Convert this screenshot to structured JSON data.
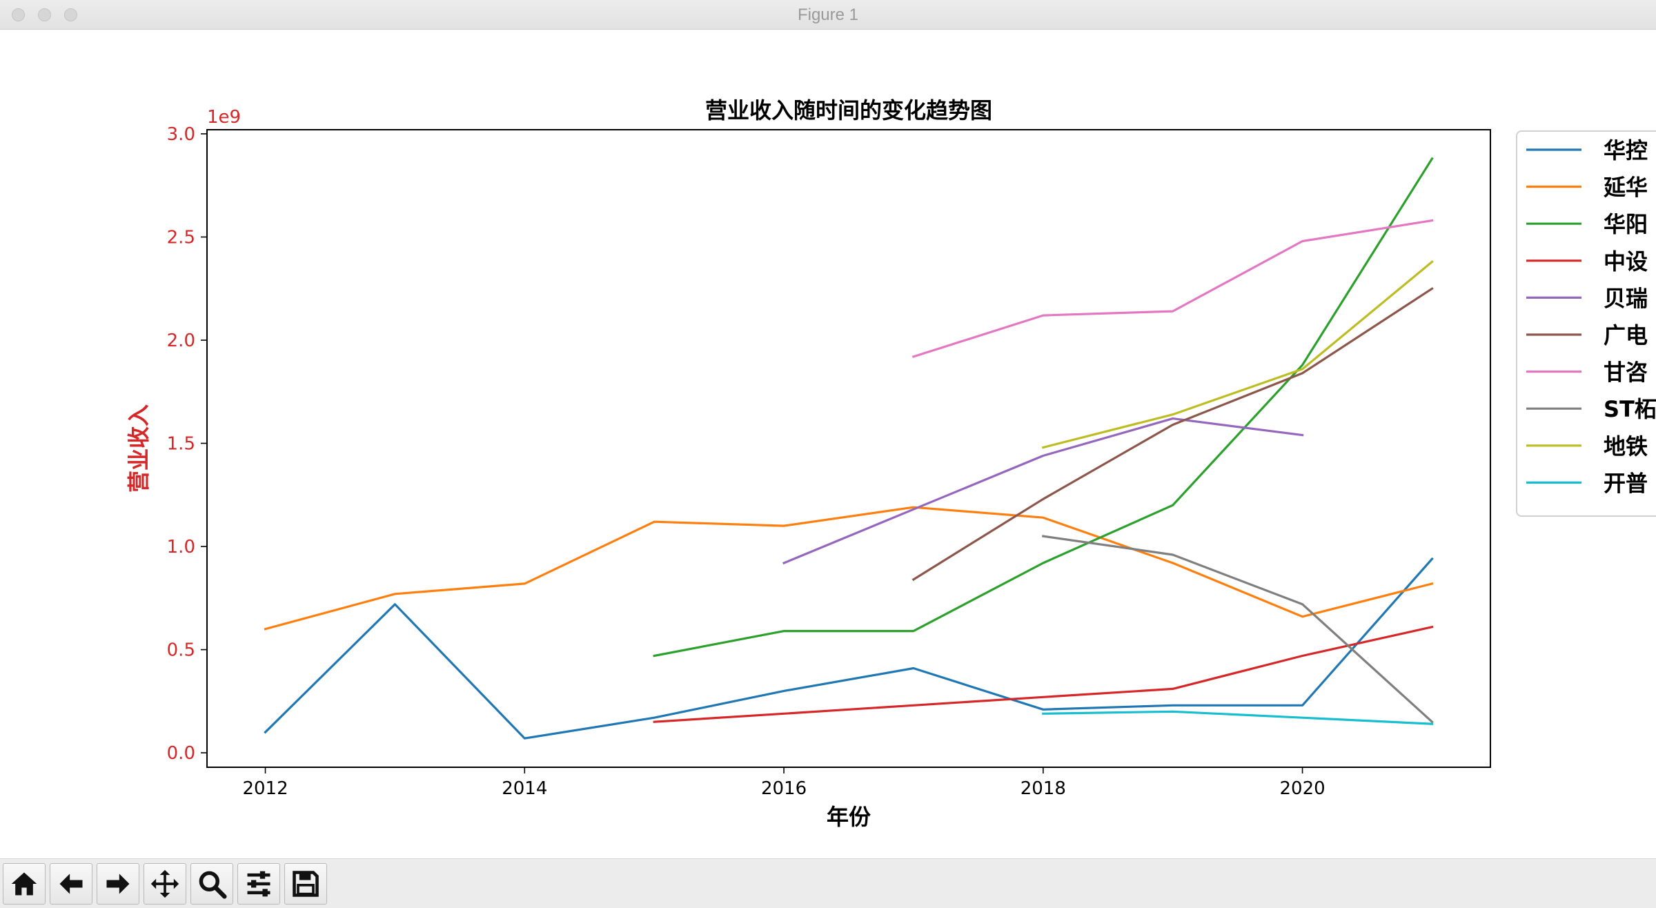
{
  "window": {
    "title": "Figure 1"
  },
  "toolbar": {
    "buttons": [
      {
        "name": "home-button",
        "icon": "home-icon"
      },
      {
        "name": "back-button",
        "icon": "arrow-left-icon"
      },
      {
        "name": "forward-button",
        "icon": "arrow-right-icon"
      },
      {
        "name": "pan-button",
        "icon": "move-icon"
      },
      {
        "name": "zoom-button",
        "icon": "magnifier-icon"
      },
      {
        "name": "configure-subplots-button",
        "icon": "sliders-icon"
      },
      {
        "name": "save-button",
        "icon": "floppy-disk-icon"
      }
    ]
  },
  "chart_data": {
    "type": "line",
    "title": "营业收入随时间的变化趋势图",
    "xlabel": "年份",
    "ylabel": "营业收入",
    "y_offset_text": "1e9",
    "xlim": [
      2011.55,
      2021.45
    ],
    "ylim": [
      -0.07,
      3.02
    ],
    "xticks": [
      2012,
      2014,
      2016,
      2018,
      2020
    ],
    "xtick_labels": [
      "2012",
      "2014",
      "2016",
      "2018",
      "2020"
    ],
    "yticks": [
      0.0,
      0.5,
      1.0,
      1.5,
      2.0,
      2.5,
      3.0
    ],
    "ytick_labels": [
      "0.0",
      "0.5",
      "1.0",
      "1.5",
      "2.0",
      "2.5",
      "3.0"
    ],
    "y_axis_color": "#d62728",
    "grid": false,
    "legend_position": "right",
    "series": [
      {
        "name": "华控",
        "color": "#1f77b4",
        "points": [
          [
            2012,
            0.1
          ],
          [
            2013,
            0.72
          ],
          [
            2014,
            0.07
          ],
          [
            2015,
            0.17
          ],
          [
            2016,
            0.3
          ],
          [
            2017,
            0.41
          ],
          [
            2018,
            0.21
          ],
          [
            2019,
            0.23
          ],
          [
            2020,
            0.23
          ],
          [
            2021,
            0.94
          ]
        ]
      },
      {
        "name": "延华",
        "color": "#ff7f0e",
        "points": [
          [
            2012,
            0.6
          ],
          [
            2013,
            0.77
          ],
          [
            2014,
            0.82
          ],
          [
            2015,
            1.12
          ],
          [
            2016,
            1.1
          ],
          [
            2017,
            1.19
          ],
          [
            2018,
            1.14
          ],
          [
            2019,
            0.92
          ],
          [
            2020,
            0.66
          ],
          [
            2021,
            0.82
          ]
        ]
      },
      {
        "name": "华阳",
        "color": "#2ca02c",
        "points": [
          [
            2015,
            0.47
          ],
          [
            2016,
            0.59
          ],
          [
            2017,
            0.59
          ],
          [
            2018,
            0.92
          ],
          [
            2019,
            1.2
          ],
          [
            2020,
            1.88
          ],
          [
            2021,
            2.88
          ]
        ]
      },
      {
        "name": "中设",
        "color": "#d62728",
        "points": [
          [
            2015,
            0.15
          ],
          [
            2016,
            0.19
          ],
          [
            2017,
            0.23
          ],
          [
            2018,
            0.27
          ],
          [
            2019,
            0.31
          ],
          [
            2020,
            0.47
          ],
          [
            2021,
            0.61
          ]
        ]
      },
      {
        "name": "贝瑞",
        "color": "#9467bd",
        "points": [
          [
            2016,
            0.92
          ],
          [
            2017,
            1.18
          ],
          [
            2018,
            1.44
          ],
          [
            2019,
            1.62
          ],
          [
            2020,
            1.54
          ]
        ]
      },
      {
        "name": "广电",
        "color": "#8c564b",
        "points": [
          [
            2017,
            0.84
          ],
          [
            2018,
            1.23
          ],
          [
            2019,
            1.59
          ],
          [
            2020,
            1.84
          ],
          [
            2021,
            2.25
          ]
        ]
      },
      {
        "name": "甘咨",
        "color": "#e377c2",
        "points": [
          [
            2017,
            1.92
          ],
          [
            2018,
            2.12
          ],
          [
            2019,
            2.14
          ],
          [
            2020,
            2.48
          ],
          [
            2021,
            2.58
          ]
        ]
      },
      {
        "name": "ST柘",
        "color": "#7f7f7f",
        "points": [
          [
            2018,
            1.05
          ],
          [
            2019,
            0.96
          ],
          [
            2020,
            0.72
          ],
          [
            2021,
            0.15
          ]
        ]
      },
      {
        "name": "地铁",
        "color": "#bcbd22",
        "points": [
          [
            2018,
            1.48
          ],
          [
            2019,
            1.64
          ],
          [
            2020,
            1.86
          ],
          [
            2021,
            2.38
          ]
        ]
      },
      {
        "name": "开普",
        "color": "#17becf",
        "points": [
          [
            2018,
            0.19
          ],
          [
            2019,
            0.2
          ],
          [
            2020,
            0.17
          ],
          [
            2021,
            0.14
          ]
        ]
      }
    ]
  }
}
